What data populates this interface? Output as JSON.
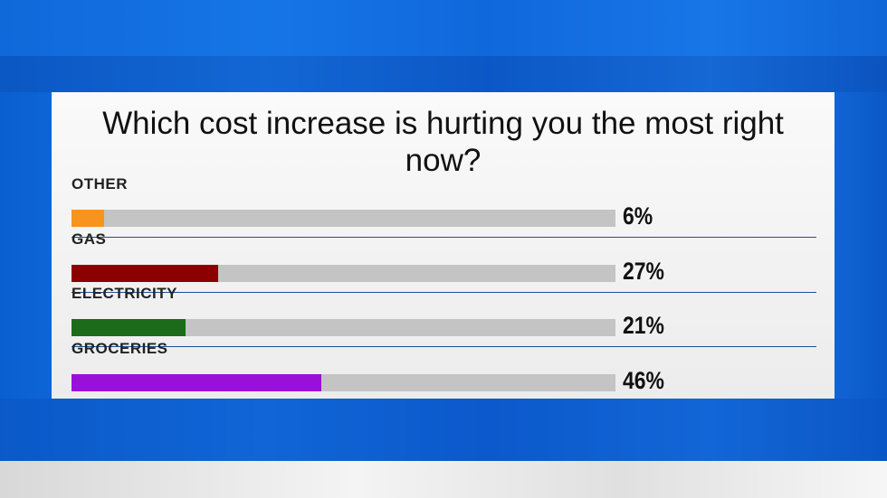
{
  "chart_data": {
    "type": "bar",
    "orientation": "horizontal",
    "title": "Which cost increase is hurting you the most right now?",
    "categories": [
      "OTHER",
      "GAS",
      "ELECTRICITY",
      "GROCERIES"
    ],
    "values": [
      6,
      27,
      21,
      46
    ],
    "value_labels": [
      "6%",
      "27%",
      "21%",
      "46%"
    ],
    "colors": [
      "#f7941d",
      "#8b0000",
      "#1b6b1b",
      "#9a10d8"
    ],
    "xlim": [
      0,
      100
    ]
  }
}
